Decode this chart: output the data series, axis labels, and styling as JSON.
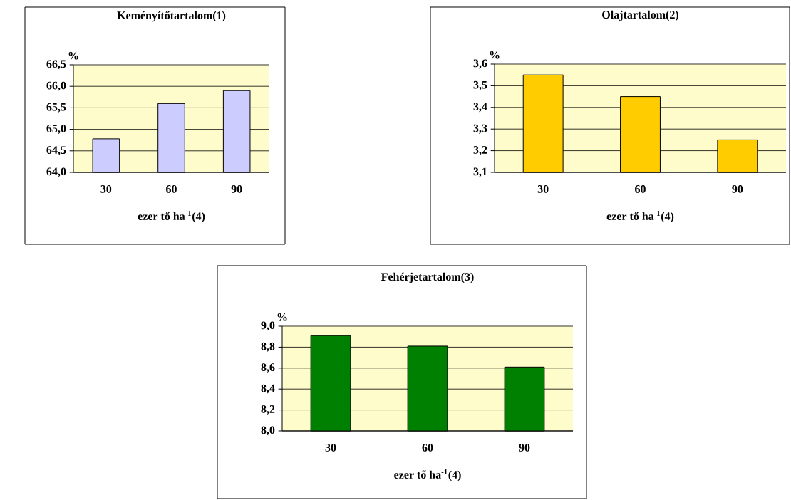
{
  "chart_data": [
    {
      "type": "bar",
      "title": "Keményítőtartalom(1)",
      "xlabel": "ezer tő ha$^{-1}$(4)",
      "ylabel": "%",
      "categories": [
        "30",
        "60",
        "90"
      ],
      "values": [
        64.78,
        65.6,
        65.9
      ],
      "color": "#ccccff",
      "ylim": [
        64.0,
        66.5
      ],
      "yticks": [
        {
          "value": 64.0,
          "label": "64,0"
        },
        {
          "value": 64.5,
          "label": "64,5"
        },
        {
          "value": 65.0,
          "label": "65,0"
        },
        {
          "value": 65.5,
          "label": "65,5"
        },
        {
          "value": 66.0,
          "label": "66,0"
        },
        {
          "value": 66.5,
          "label": "66,5"
        }
      ],
      "grid": "y"
    },
    {
      "type": "bar",
      "title": "Olajtartalom(2)",
      "xlabel": "ezer tő ha$^{-1}$(4)",
      "ylabel": "%",
      "categories": [
        "30",
        "60",
        "90"
      ],
      "values": [
        3.55,
        3.45,
        3.25
      ],
      "color": "#ffcc00",
      "ylim": [
        3.1,
        3.6
      ],
      "yticks": [
        {
          "value": 3.1,
          "label": "3,1"
        },
        {
          "value": 3.2,
          "label": "3,2"
        },
        {
          "value": 3.3,
          "label": "3,3"
        },
        {
          "value": 3.4,
          "label": "3,4"
        },
        {
          "value": 3.5,
          "label": "3,5"
        },
        {
          "value": 3.6,
          "label": "3,6"
        }
      ],
      "grid": "y"
    },
    {
      "type": "bar",
      "title": "Fehérjetartalom(3)",
      "xlabel": "ezer tő ha$^{-1}$(4)",
      "ylabel": "%",
      "categories": [
        "30",
        "60",
        "90"
      ],
      "values": [
        8.91,
        8.81,
        8.61
      ],
      "color": "#008000",
      "ylim": [
        8.0,
        9.0
      ],
      "yticks": [
        {
          "value": 8.0,
          "label": "8,0"
        },
        {
          "value": 8.2,
          "label": "8,2"
        },
        {
          "value": 8.4,
          "label": "8,4"
        },
        {
          "value": 8.6,
          "label": "8,6"
        },
        {
          "value": 8.8,
          "label": "8,8"
        },
        {
          "value": 9.0,
          "label": "9,0"
        }
      ],
      "grid": "y"
    }
  ]
}
